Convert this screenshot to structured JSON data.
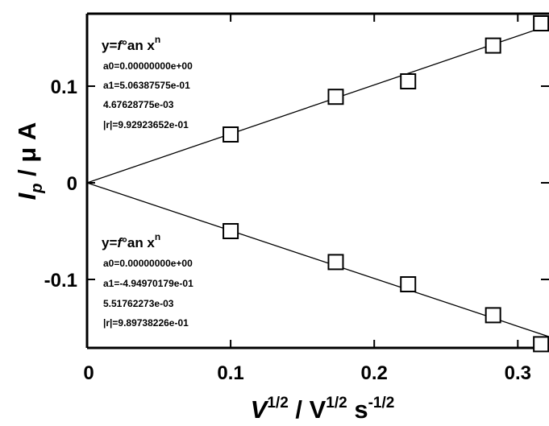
{
  "chart_data": {
    "type": "scatter",
    "xlabel": {
      "base": "V",
      "sup1": "1/2",
      "mid": " / V",
      "sup2": "1/2",
      "tail": " s",
      "sup3": "-1/2"
    },
    "ylabel": {
      "sym": "I",
      "sub": "p",
      "unit": " / μ A"
    },
    "xlim": [
      0,
      0.32
    ],
    "ylim": [
      -0.17,
      0.17
    ],
    "xticks": [
      "0",
      "0.1",
      "0.2",
      "0.3"
    ],
    "yticks": [
      "0.1",
      "0",
      "-0.1"
    ],
    "xtick_values": [
      0,
      0.1,
      0.2,
      0.3
    ],
    "ytick_values": [
      0.1,
      0,
      -0.1
    ],
    "series": [
      {
        "x": [
          0.1,
          0.1732,
          0.2236,
          0.2828,
          0.3162
        ],
        "y": [
          0.05,
          0.089,
          0.105,
          0.142,
          0.165
        ],
        "marker": "open-square",
        "fit": {
          "slope": 0.506387575,
          "intercept": 0
        }
      },
      {
        "x": [
          0.1,
          0.1732,
          0.2236,
          0.2828,
          0.3162
        ],
        "y": [
          -0.05,
          -0.082,
          -0.105,
          -0.137,
          -0.167
        ],
        "marker": "open-square",
        "fit": {
          "slope": -0.494970179,
          "intercept": 0
        }
      }
    ],
    "annotations": [
      {
        "head": "y=",
        "head_f": "f",
        "head_rest": "°an x",
        "head_sup": "n",
        "lines": [
          "a0=0.00000000e+00",
          "a1=5.06387575e-01",
          "4.67628775e-03",
          "|r|=9.92923652e-01"
        ]
      },
      {
        "head": "y=",
        "head_f": "f",
        "head_rest": "°an x",
        "head_sup": "n",
        "lines": [
          "a0=0.00000000e+00",
          "a1=-4.94970179e-01",
          "5.51762273e-03",
          "|r|=9.89738226e-01"
        ]
      }
    ],
    "grid": false,
    "colors": {
      "line": "#000000",
      "marker_fill": "#ffffff",
      "background": "#ffffff"
    }
  }
}
